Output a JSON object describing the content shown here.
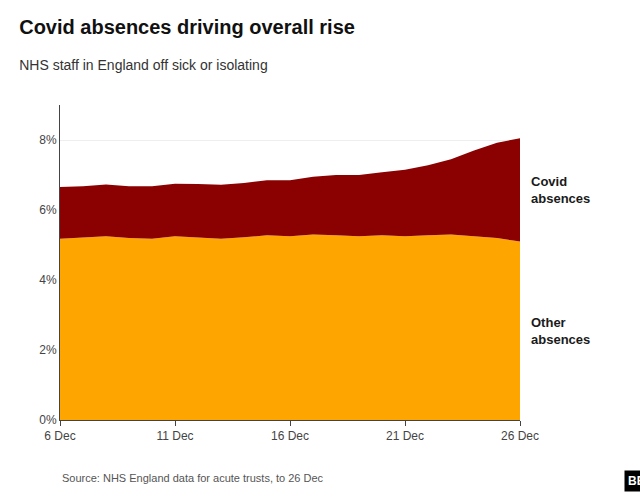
{
  "chart_data": {
    "type": "area",
    "title": "Covid absences driving overall rise",
    "subtitle": "NHS staff in England off sick or isolating",
    "source": "Source: NHS England data for acute trusts, to 26 Dec",
    "annotations": [
      "BBC"
    ],
    "categories": [
      "6 Dec",
      null,
      null,
      null,
      null,
      "11 Dec",
      null,
      null,
      null,
      null,
      "16 Dec",
      null,
      null,
      null,
      null,
      "21 Dec",
      null,
      null,
      null,
      null,
      "26 Dec"
    ],
    "stacked": true,
    "series": [
      {
        "name": "Other\nabsences",
        "color": "#FFA500",
        "values": [
          5.18,
          5.22,
          5.25,
          5.2,
          5.18,
          5.25,
          5.22,
          5.18,
          5.22,
          5.28,
          5.25,
          5.3,
          5.28,
          5.25,
          5.28,
          5.25,
          5.28,
          5.3,
          5.25,
          5.2,
          5.1
        ]
      },
      {
        "name": "Covid\nabsences",
        "color": "#8B0000",
        "values": [
          1.48,
          1.46,
          1.48,
          1.48,
          1.5,
          1.5,
          1.52,
          1.54,
          1.55,
          1.57,
          1.6,
          1.65,
          1.72,
          1.75,
          1.8,
          1.9,
          2.0,
          2.15,
          2.45,
          2.72,
          2.95
        ]
      }
    ],
    "ylim": [
      0,
      9.0
    ],
    "yticks": [
      {
        "value": 0,
        "label": "0%"
      },
      {
        "value": 2,
        "label": "2%"
      },
      {
        "value": 4,
        "label": "4%"
      },
      {
        "value": 6,
        "label": "6%"
      },
      {
        "value": 8,
        "label": "8%"
      }
    ],
    "grid": true
  }
}
